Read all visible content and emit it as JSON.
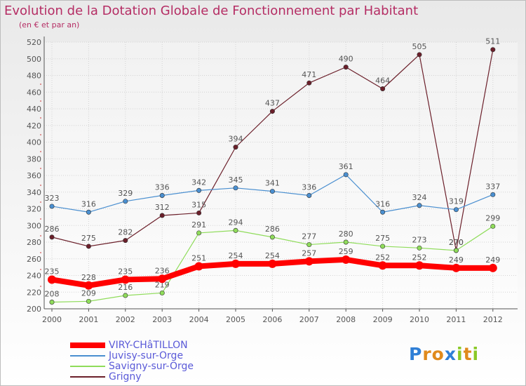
{
  "chart_data": {
    "type": "line",
    "title": "Evolution de la Dotation Globale de Fonctionnement par Habitant",
    "subtitle": "(en € et par an)",
    "x": [
      "2000",
      "2001",
      "2002",
      "2003",
      "2004",
      "2005",
      "2006",
      "2007",
      "2008",
      "2009",
      "2010",
      "2011",
      "2012"
    ],
    "ylim": [
      200,
      520
    ],
    "yticks": [
      "200",
      "220",
      "240",
      "260",
      "280",
      "300",
      "320",
      "340",
      "360",
      "380",
      "400",
      "420",
      "440",
      "460",
      "480",
      "500",
      "520"
    ],
    "grid": true,
    "series": [
      {
        "name": "Grigny",
        "color": "#6b1f2a",
        "values": [
          286,
          275,
          282,
          312,
          315,
          394,
          437,
          471,
          490,
          464,
          505,
          270,
          511
        ]
      },
      {
        "name": "Juvisy-sur-Orge",
        "color": "#4a8fd0",
        "values": [
          323,
          316,
          329,
          336,
          342,
          345,
          341,
          336,
          361,
          316,
          324,
          319,
          337
        ]
      },
      {
        "name": "Savigny-sur-Orge",
        "color": "#8fdc5a",
        "values": [
          208,
          209,
          216,
          219,
          291,
          294,
          286,
          277,
          280,
          275,
          273,
          270,
          299
        ]
      },
      {
        "name": "VIRY-CHâTILLON",
        "color": "#ff0000",
        "values": [
          235,
          228,
          235,
          236,
          251,
          254,
          254,
          257,
          259,
          252,
          252,
          249,
          249
        ]
      }
    ]
  },
  "legend": [
    {
      "label": "VIRY-CHâTILLON",
      "color": "#ff0000"
    },
    {
      "label": "Juvisy-sur-Orge",
      "color": "#4a8fd0"
    },
    {
      "label": "Savigny-sur-Orge",
      "color": "#8fdc5a"
    },
    {
      "label": "Grigny",
      "color": "#6b1f2a"
    }
  ],
  "logo": {
    "letters": [
      "P",
      "r",
      "o",
      "x",
      "i",
      "t",
      "i"
    ],
    "colors": [
      "#2f7fd6",
      "#e08a1c",
      "#e08a1c",
      "#2f7fd6",
      "#8ac926",
      "#e08a1c",
      "#8ac926"
    ]
  }
}
